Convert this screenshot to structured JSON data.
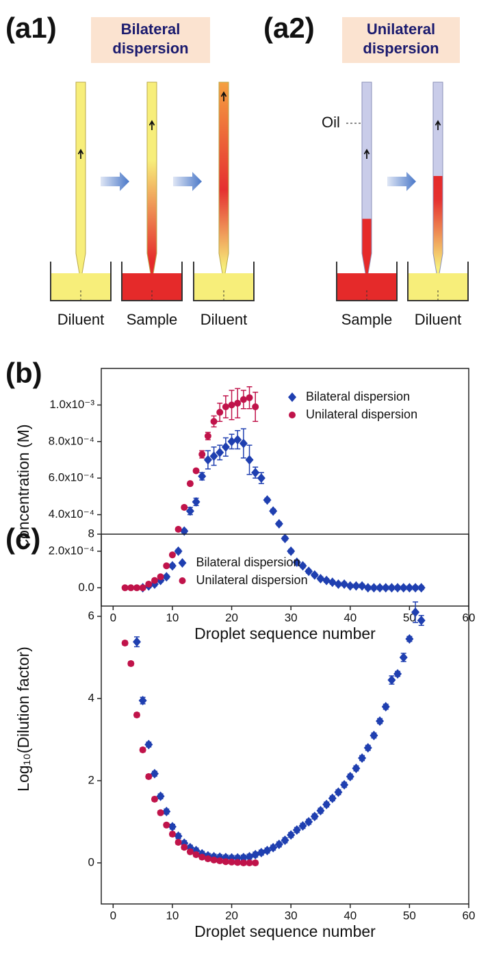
{
  "diagram": {
    "a1": {
      "label": "(a1)",
      "title": [
        "Bilateral",
        "dispersion"
      ],
      "labels": [
        "Diluent",
        "Sample",
        "Diluent"
      ]
    },
    "a2": {
      "label": "(a2)",
      "title": [
        "Unilateral",
        "dispersion"
      ],
      "labels": [
        "Sample",
        "Diluent"
      ],
      "oil": "Oil"
    }
  },
  "chart_data": [
    {
      "type": "scatter",
      "panel": "(b)",
      "x_label": "Droplet sequence number",
      "y_label": "Concentration (M)",
      "xlim": [
        -2,
        60
      ],
      "xticks": [
        0,
        10,
        20,
        30,
        40,
        50,
        60
      ],
      "ylim": [
        -0.0001,
        0.0012
      ],
      "yticks": [
        {
          "value": 0,
          "label": "0.0"
        },
        {
          "value": 0.0002,
          "label": "2.0x10⁻⁴"
        },
        {
          "value": 0.0004,
          "label": "4.0x10⁻⁴"
        },
        {
          "value": 0.0006,
          "label": "6.0x10⁻⁴"
        },
        {
          "value": 0.0008,
          "label": "8.0x10⁻⁴"
        },
        {
          "value": 0.001,
          "label": "1.0x10⁻³"
        }
      ],
      "legend": "upper right",
      "series": [
        {
          "name": "Bilateral dispersion",
          "color": "#1f3fb0",
          "marker": "diamond",
          "x": [
            5,
            6,
            7,
            8,
            9,
            10,
            11,
            12,
            13,
            14,
            15,
            16,
            17,
            18,
            19,
            20,
            21,
            22,
            23,
            24,
            25,
            26,
            27,
            28,
            29,
            30,
            31,
            32,
            33,
            34,
            35,
            36,
            37,
            38,
            39,
            40,
            41,
            42,
            43,
            44,
            45,
            46,
            47,
            48,
            49,
            50,
            51,
            52
          ],
          "values": [
            0,
            1e-05,
            2e-05,
            4e-05,
            6e-05,
            0.00012,
            0.0002,
            0.00031,
            0.00042,
            0.00047,
            0.00061,
            0.0007,
            0.00072,
            0.00074,
            0.00077,
            0.0008,
            0.00081,
            0.00079,
            0.0007,
            0.00063,
            0.0006,
            0.00048,
            0.00042,
            0.00035,
            0.00027,
            0.0002,
            0.00014,
            0.00012,
            9e-05,
            7e-05,
            5e-05,
            4e-05,
            3e-05,
            2e-05,
            2e-05,
            1e-05,
            1e-05,
            1e-05,
            0,
            0,
            0,
            0,
            0,
            0,
            0,
            0,
            0,
            0
          ],
          "errors": [
            1e-05,
            1e-05,
            1e-05,
            1e-05,
            1e-05,
            1e-05,
            1e-05,
            1e-05,
            2e-05,
            2e-05,
            2e-05,
            5e-05,
            5e-05,
            4e-05,
            5e-05,
            4e-05,
            5e-05,
            8e-05,
            8e-05,
            3e-05,
            3e-05,
            1e-05,
            1e-05,
            1e-05,
            1e-05,
            1e-05,
            1e-05,
            1e-05,
            1e-05,
            1e-05,
            1e-05,
            1e-05,
            1e-05,
            1e-05,
            1e-05,
            1e-05,
            1e-05,
            1e-05,
            1e-05,
            1e-05,
            1e-05,
            1e-05,
            1e-05,
            1e-05,
            1e-05,
            1e-05,
            1e-05,
            1e-05
          ]
        },
        {
          "name": "Unilateral dispersion",
          "color": "#c0134a",
          "marker": "circle",
          "x": [
            2,
            3,
            4,
            5,
            6,
            7,
            8,
            9,
            10,
            11,
            12,
            13,
            14,
            15,
            16,
            17,
            18,
            19,
            20,
            21,
            22,
            23,
            24
          ],
          "values": [
            0,
            0,
            0,
            0,
            2e-05,
            4e-05,
            6e-05,
            0.00012,
            0.00018,
            0.00032,
            0.00044,
            0.00057,
            0.00064,
            0.00073,
            0.00083,
            0.00091,
            0.00096,
            0.00099,
            0.001,
            0.00101,
            0.00103,
            0.00104,
            0.00099
          ],
          "errors": [
            1e-05,
            1e-05,
            1e-05,
            1e-05,
            1e-05,
            1e-05,
            1e-05,
            1e-05,
            1e-05,
            1e-05,
            1e-05,
            1e-05,
            1e-05,
            2e-05,
            2e-05,
            3e-05,
            5e-05,
            6e-05,
            8e-05,
            8e-05,
            5e-05,
            6e-05,
            8e-05
          ]
        }
      ]
    },
    {
      "type": "scatter",
      "panel": "(c)",
      "x_label": "Droplet sequence number",
      "y_label": "Log₁₀(Dilution factor)",
      "xlim": [
        -2,
        60
      ],
      "xticks": [
        0,
        10,
        20,
        30,
        40,
        50,
        60
      ],
      "ylim": [
        -1,
        8
      ],
      "yticks": [
        0,
        2,
        4,
        6,
        8
      ],
      "legend": "upper center",
      "series": [
        {
          "name": "Bilateral dispersion",
          "color": "#1f3fb0",
          "marker": "diamond",
          "x": [
            4,
            5,
            6,
            7,
            8,
            9,
            10,
            11,
            12,
            13,
            14,
            15,
            16,
            17,
            18,
            19,
            20,
            21,
            22,
            23,
            24,
            25,
            26,
            27,
            28,
            29,
            30,
            31,
            32,
            33,
            34,
            35,
            36,
            37,
            38,
            39,
            40,
            41,
            42,
            43,
            44,
            45,
            46,
            47,
            48,
            49,
            50,
            51,
            52
          ],
          "values": [
            5.38,
            3.95,
            2.88,
            2.17,
            1.62,
            1.25,
            0.88,
            0.65,
            0.48,
            0.37,
            0.3,
            0.22,
            0.17,
            0.15,
            0.14,
            0.13,
            0.12,
            0.12,
            0.13,
            0.15,
            0.2,
            0.25,
            0.3,
            0.37,
            0.45,
            0.55,
            0.68,
            0.8,
            0.9,
            1.0,
            1.13,
            1.27,
            1.42,
            1.57,
            1.72,
            1.9,
            2.1,
            2.3,
            2.55,
            2.8,
            3.1,
            3.45,
            3.8,
            4.45,
            4.6,
            5.0,
            5.45,
            6.1,
            5.9
          ],
          "errors": [
            0.12,
            0.08,
            0.06,
            0.06,
            0.06,
            0.06,
            0.06,
            0.06,
            0.06,
            0.06,
            0.06,
            0.06,
            0.06,
            0.06,
            0.06,
            0.06,
            0.06,
            0.06,
            0.06,
            0.06,
            0.06,
            0.06,
            0.06,
            0.06,
            0.06,
            0.06,
            0.06,
            0.06,
            0.06,
            0.06,
            0.06,
            0.06,
            0.06,
            0.06,
            0.06,
            0.06,
            0.06,
            0.06,
            0.06,
            0.06,
            0.06,
            0.06,
            0.06,
            0.1,
            0.06,
            0.1,
            0.06,
            0.25,
            0.12
          ]
        },
        {
          "name": "Unilateral dispersion",
          "color": "#c0134a",
          "marker": "circle",
          "x": [
            2,
            3,
            4,
            5,
            6,
            7,
            8,
            9,
            10,
            11,
            12,
            13,
            14,
            15,
            16,
            17,
            18,
            19,
            20,
            21,
            22,
            23,
            24
          ],
          "values": [
            5.35,
            4.85,
            3.6,
            2.75,
            2.1,
            1.55,
            1.22,
            0.92,
            0.7,
            0.5,
            0.38,
            0.27,
            0.2,
            0.14,
            0.1,
            0.07,
            0.05,
            0.03,
            0.02,
            0.01,
            0,
            0,
            0
          ],
          "errors": [
            0.05,
            0.05,
            0.05,
            0.05,
            0.05,
            0.05,
            0.05,
            0.05,
            0.05,
            0.05,
            0.05,
            0.05,
            0.05,
            0.05,
            0.05,
            0.05,
            0.05,
            0.05,
            0.05,
            0.05,
            0.05,
            0.05,
            0.05
          ]
        }
      ]
    }
  ]
}
